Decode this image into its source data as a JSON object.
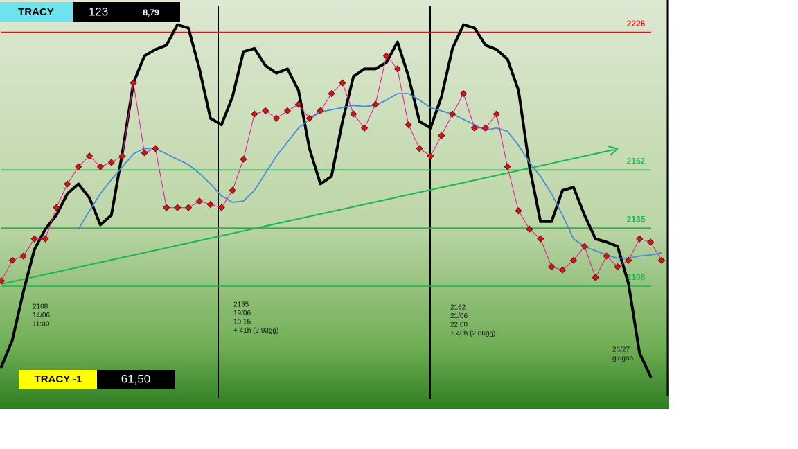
{
  "chart_data": {
    "type": "line",
    "header": {
      "name": "TRACY",
      "value": "123",
      "sub": "8,79"
    },
    "footer": {
      "name": "TRACY -1",
      "value": "61,50"
    },
    "ylim": [
      2051,
      2241
    ],
    "levels": [
      2226,
      2162,
      2135,
      2108
    ],
    "level_colors": [
      "#e01818",
      "#16b84a",
      "#16b84a",
      "#16b84a"
    ],
    "annotations": [
      [
        "2108",
        "14/06",
        "11:00"
      ],
      [
        "2135",
        "19/06",
        "10:15",
        "+ 41h (2,93gg)"
      ],
      [
        "2162",
        "21/06",
        "22:00",
        "+ 40h (2,86gg)"
      ],
      [
        "26/27",
        "giugno"
      ]
    ],
    "series": [
      {
        "color": "#e8109a",
        "marker_color": "#e01010",
        "values": [
          2110.5,
          2120,
          2122,
          2130,
          2130,
          2144.5,
          2155.5,
          2163.5,
          2168.5,
          2163.5,
          2165.5,
          2168.5,
          2202.5,
          2170,
          2172,
          2144.5,
          2144.5,
          2144.5,
          2147.5,
          2146,
          2144.5,
          2152.5,
          2167,
          2188,
          2189.5,
          2186,
          2189.5,
          2192.5,
          2186,
          2189.5,
          2197.5,
          2202.5,
          2188,
          2181.5,
          2192.5,
          2215,
          2209,
          2183,
          2172,
          2168.5,
          2178,
          2188,
          2197.5,
          2181.5,
          2181.5,
          2188,
          2163.5,
          2143,
          2134.5,
          2130,
          2117,
          2115.5,
          2120,
          2126.5,
          2112,
          2122,
          2117,
          2120,
          2130,
          2128.5,
          2120
        ]
      },
      {
        "color": "#4a8ad8",
        "values": [
          null,
          null,
          null,
          null,
          null,
          null,
          null,
          2134.5,
          2143,
          2151,
          2157.5,
          2163.5,
          2169.5,
          2172,
          2172,
          2169.5,
          2167,
          2164.5,
          2160.5,
          2155.5,
          2150,
          2147,
          2147.5,
          2152.5,
          2160.5,
          2168.5,
          2175,
          2181.5,
          2185.5,
          2189,
          2190,
          2191,
          2192,
          2191.5,
          2192,
          2194.5,
          2197.5,
          2197.5,
          2194.5,
          2191,
          2189.5,
          2188,
          2185.5,
          2183,
          2180.5,
          2181.5,
          2180,
          2173.5,
          2165.5,
          2159,
          2151,
          2141,
          2130,
          2126.5,
          2124.5,
          2122.5,
          2121,
          2121,
          2122,
          2122.5,
          2123.5
        ]
      },
      {
        "color": "#000000",
        "values": [
          2070.5,
          2083,
          2105.5,
          2125,
          2134.5,
          2141,
          2151,
          2155.5,
          2149,
          2136.5,
          2141,
          2170,
          2202.5,
          2215,
          2218,
          2220,
          2229.5,
          2228,
          2209,
          2186,
          2183,
          2196,
          2217,
          2218.5,
          2210.5,
          2207,
          2209,
          2199,
          2172,
          2155.5,
          2159,
          2184.5,
          2205.5,
          2209,
          2209,
          2212,
          2221.5,
          2205.5,
          2184.5,
          2181.5,
          2196,
          2218.5,
          2229.5,
          2228,
          2220,
          2218,
          2213.5,
          2199,
          2163.5,
          2138,
          2138,
          2152.5,
          2154,
          2141,
          2130,
          2128.5,
          2126.5,
          2109,
          2077,
          2066,
          null
        ]
      }
    ]
  }
}
